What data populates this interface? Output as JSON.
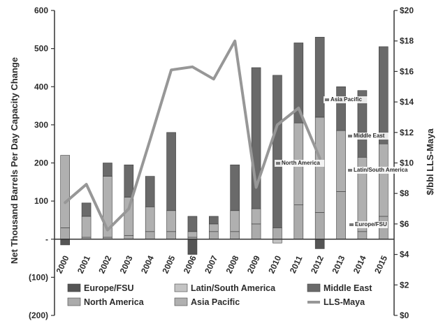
{
  "chart_data": {
    "type": "bar",
    "subtype": "stacked bar with line on secondary axis",
    "categories": [
      "2000",
      "2001",
      "2002",
      "2003",
      "2004",
      "2005",
      "2006",
      "2007",
      "2008",
      "2009",
      "2010",
      "2011",
      "2012",
      "2013",
      "2014",
      "2015"
    ],
    "series": [
      {
        "name": "Europe/FSU",
        "kind": "bar",
        "color": "#555555",
        "values": [
          -15,
          0,
          0,
          0,
          0,
          0,
          -40,
          0,
          0,
          0,
          0,
          0,
          -25,
          0,
          0,
          0
        ]
      },
      {
        "name": "Latin/South America",
        "kind": "bar",
        "color": "#c4c4c4",
        "values": [
          0,
          0,
          0,
          0,
          0,
          0,
          0,
          0,
          0,
          0,
          -10,
          0,
          0,
          0,
          0,
          0
        ]
      },
      {
        "name": "North America",
        "kind": "bar",
        "color": "#ababab",
        "values": [
          30,
          5,
          5,
          10,
          20,
          20,
          5,
          20,
          20,
          40,
          30,
          90,
          70,
          125,
          20,
          60
        ]
      },
      {
        "name": "Asia Pacific",
        "kind": "bar",
        "color": "#b0b0b0",
        "values": [
          190,
          55,
          160,
          100,
          65,
          55,
          15,
          20,
          55,
          40,
          0,
          215,
          250,
          160,
          195,
          190
        ]
      },
      {
        "name": "Middle East",
        "kind": "bar",
        "color": "#6a6a6a",
        "values": [
          0,
          35,
          35,
          85,
          80,
          205,
          40,
          20,
          120,
          370,
          400,
          210,
          210,
          115,
          175,
          255
        ]
      },
      {
        "name": "LLS-Maya",
        "kind": "line",
        "axis": "right",
        "color": "#979797",
        "values": [
          7.4,
          8.6,
          5.6,
          7.0,
          11.5,
          16.1,
          16.3,
          15.5,
          18.0,
          8.4,
          12.5,
          13.6,
          10.3,
          null,
          null,
          null
        ]
      }
    ],
    "ylabel": "Net Thousand Barrels Per Day Capacity Change",
    "y2label": "$/bbl LLS-Maya",
    "ylim": [
      -200,
      600
    ],
    "y2lim": [
      0,
      20
    ],
    "yticks": [
      "(200)",
      "(100)",
      "-",
      "100",
      "200",
      "300",
      "400",
      "500",
      "600"
    ],
    "y2ticks": [
      "$0",
      "$2",
      "$4",
      "$6",
      "$8",
      "$10",
      "$12",
      "$14",
      "$16",
      "$18",
      "$20"
    ],
    "annotations": [
      "Asia Pacific",
      "Middle East",
      "North America",
      "Latin/South America",
      "Europe/FSU"
    ],
    "legend": {
      "position": "bottom",
      "items": [
        {
          "name": "Europe/FSU",
          "color": "#555555"
        },
        {
          "name": "Latin/South America",
          "color": "#c4c4c4"
        },
        {
          "name": "Middle East",
          "color": "#6a6a6a"
        },
        {
          "name": "North America",
          "color": "#ababab"
        },
        {
          "name": "Asia Pacific",
          "color": "#b0b0b0"
        },
        {
          "name": "LLS-Maya",
          "color": "#979797"
        }
      ]
    },
    "grid": false
  }
}
